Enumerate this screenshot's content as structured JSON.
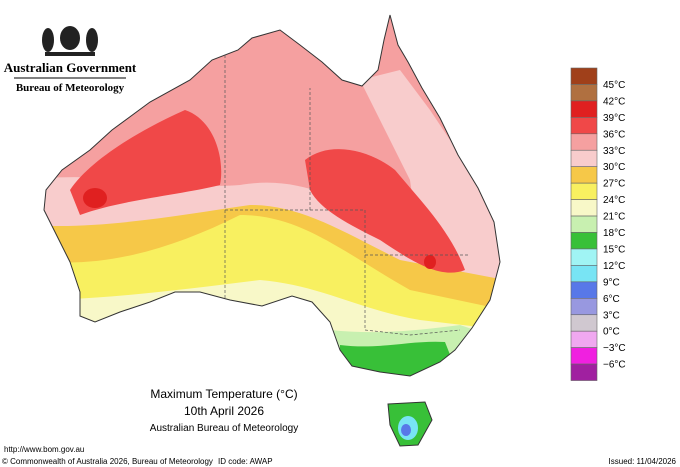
{
  "header": {
    "government": "Australian Government",
    "agency": "Bureau of Meteorology"
  },
  "legend": {
    "labels": [
      "45°C",
      "42°C",
      "39°C",
      "36°C",
      "33°C",
      "30°C",
      "27°C",
      "24°C",
      "21°C",
      "18°C",
      "15°C",
      "12°C",
      "9°C",
      "6°C",
      "3°C",
      "0°C",
      "−3°C",
      "−6°C"
    ],
    "colors": [
      "#a0401a",
      "#b07040",
      "#e02020",
      "#f04848",
      "#f5a0a0",
      "#f8cccc",
      "#f6c848",
      "#f8f060",
      "#f8f8c8",
      "#c8f0b0",
      "#38c038",
      "#a0f4f4",
      "#78e4f4",
      "#5878e8",
      "#9898e0",
      "#d0c8d0",
      "#f0a8f0",
      "#f020e0",
      "#a020a0"
    ]
  },
  "title": {
    "line1": "Maximum Temperature (°C)",
    "line2": "10th April 2026",
    "line3": "Australian Bureau of Meteorology"
  },
  "footer": {
    "url": "http://www.bom.gov.au",
    "copyright": "© Commonwealth of Australia 2026, Bureau of Meteorology",
    "id_code": "ID code: AWAP",
    "issued": "Issued: 11/04/2026"
  }
}
